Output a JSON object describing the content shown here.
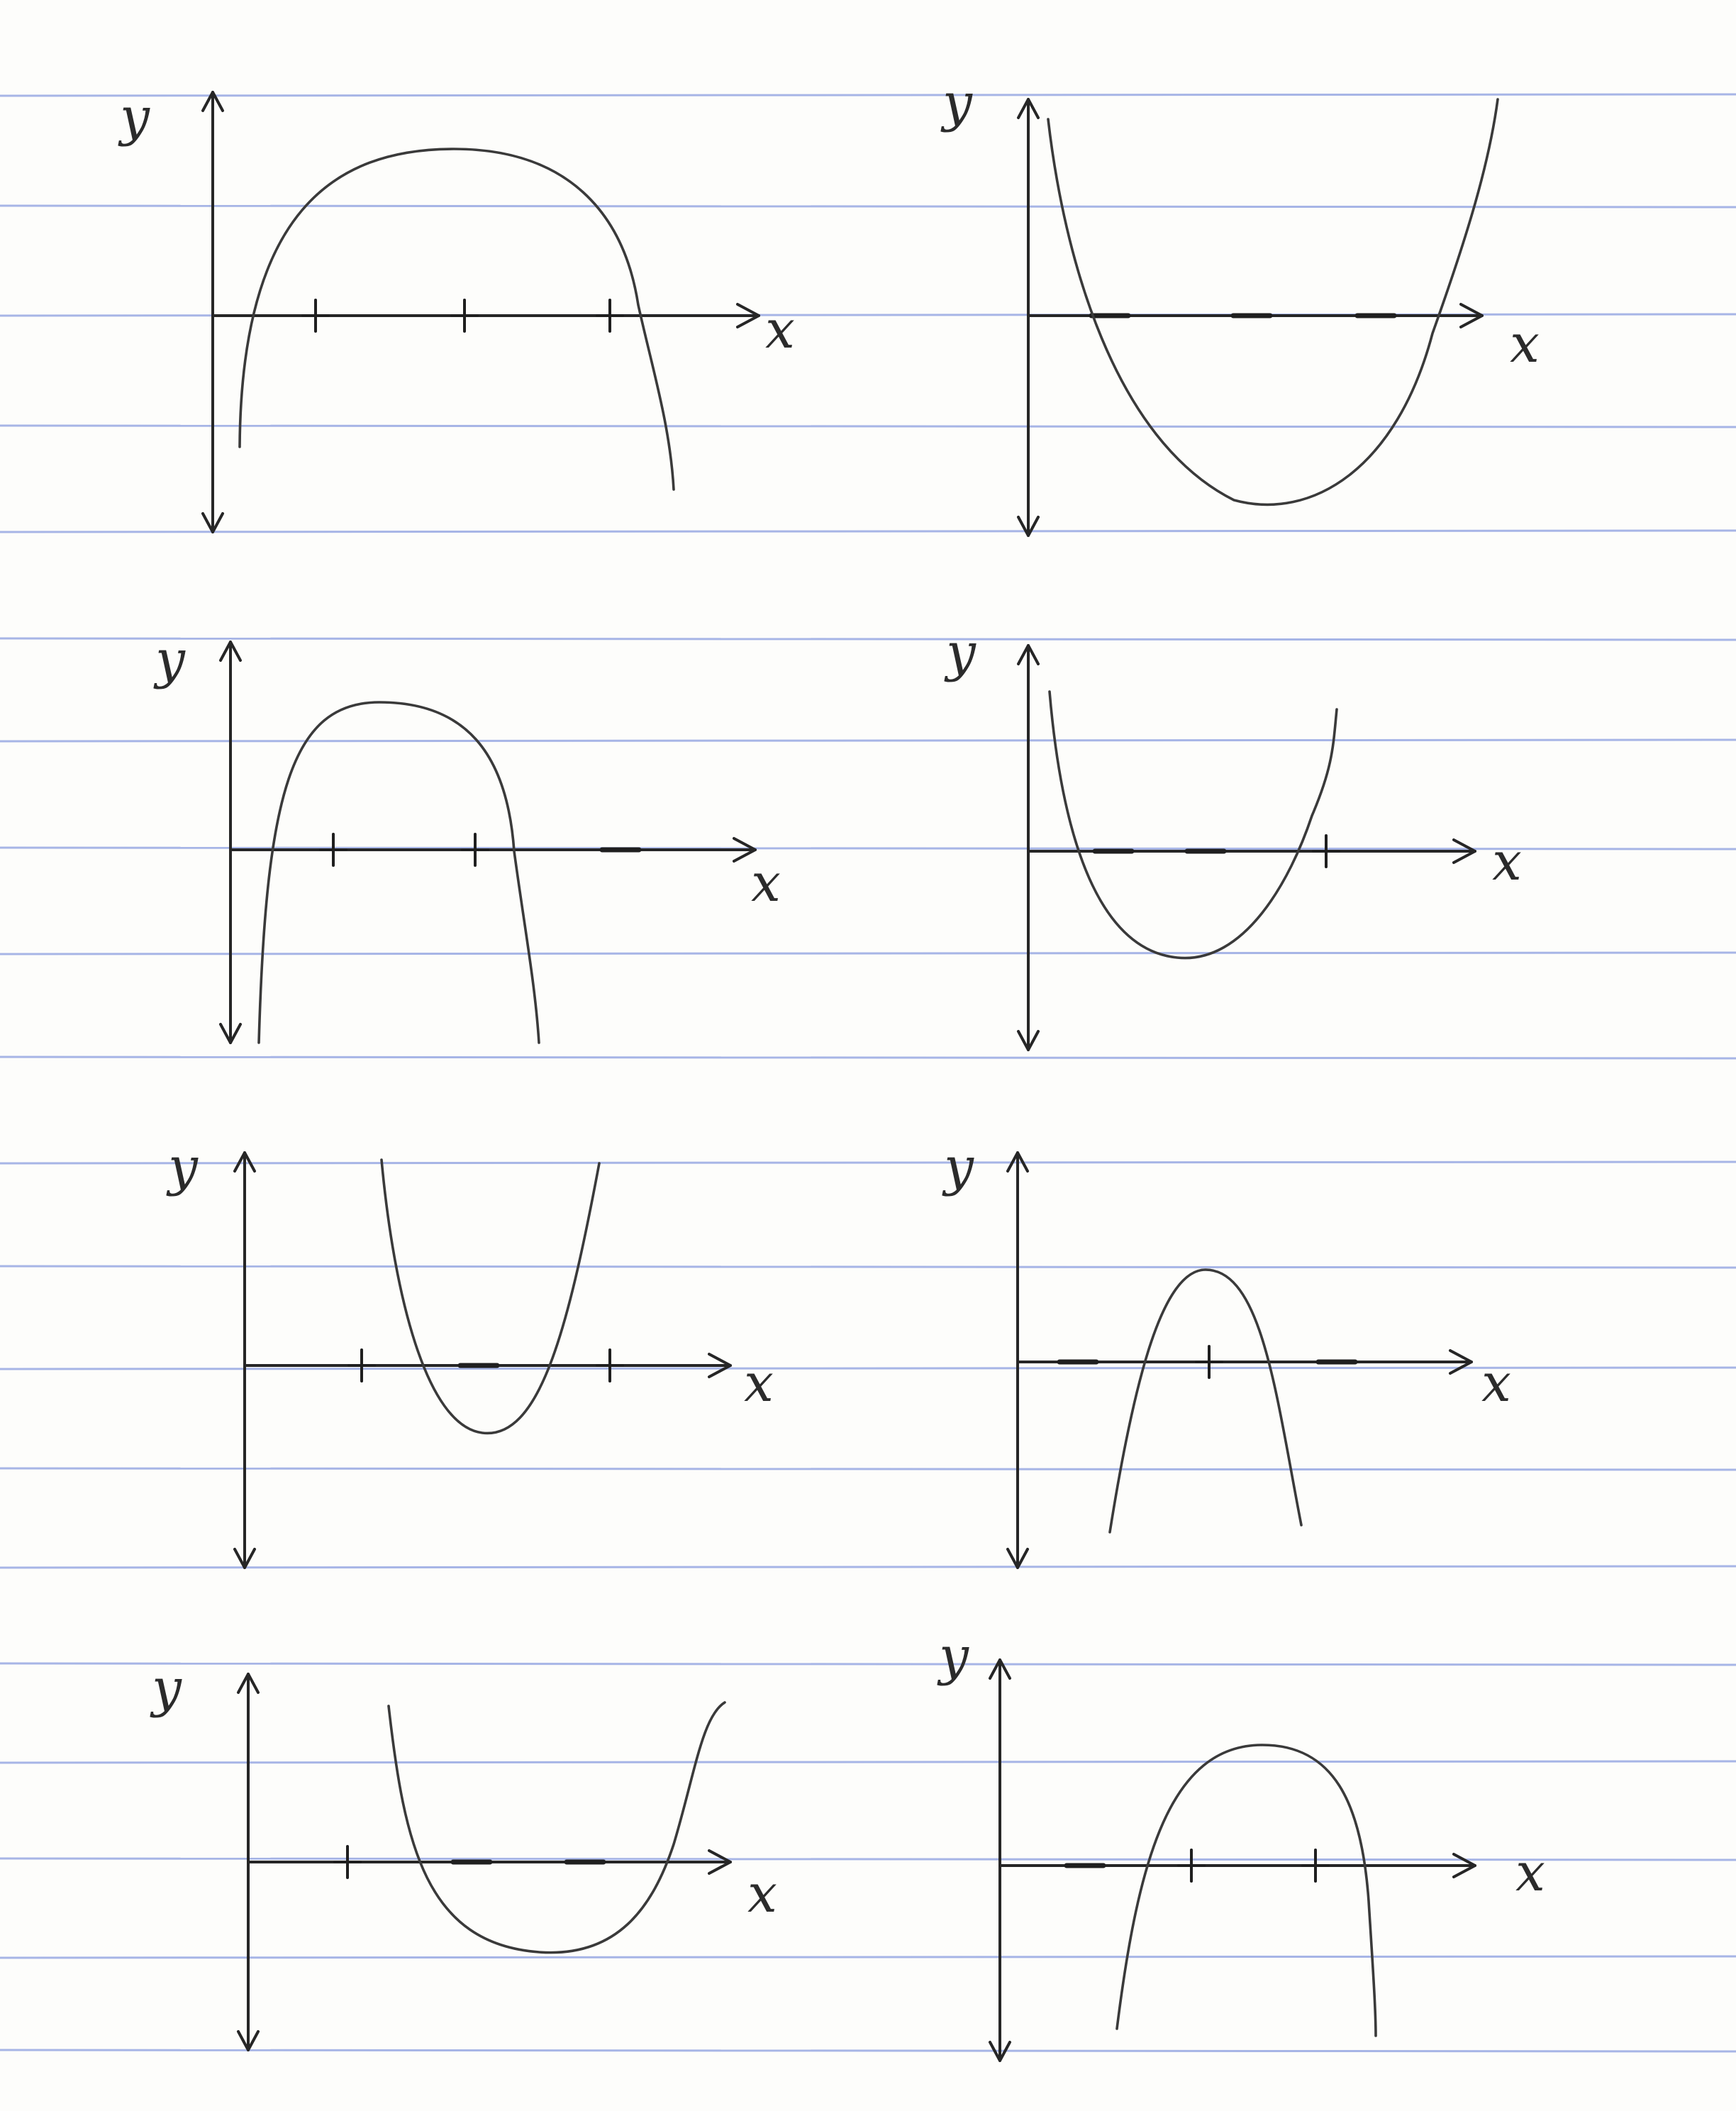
{
  "page": {
    "paper_color": "#fdfdfb",
    "rule_color": "#a7b5e6",
    "ink_color": "#2b2b2b"
  },
  "sketches": [
    {
      "id": "sketch-1",
      "axis_labels": {
        "y": "y",
        "x": "x"
      },
      "signs": [
        "+",
        "+",
        "+"
      ],
      "shape": "opens-down"
    },
    {
      "id": "sketch-2",
      "axis_labels": {
        "y": "y",
        "x": "x"
      },
      "signs": [
        "−",
        "−",
        "−"
      ],
      "shape": "opens-up"
    },
    {
      "id": "sketch-3",
      "axis_labels": {
        "y": "y",
        "x": "x"
      },
      "signs": [
        "+",
        "+",
        "−"
      ],
      "shape": "opens-down"
    },
    {
      "id": "sketch-4",
      "axis_labels": {
        "y": "y",
        "x": "x"
      },
      "signs": [
        "−",
        "−",
        "+"
      ],
      "shape": "opens-up"
    },
    {
      "id": "sketch-5",
      "axis_labels": {
        "y": "y",
        "x": "x"
      },
      "signs": [
        "+",
        "−",
        "+"
      ],
      "shape": "opens-up"
    },
    {
      "id": "sketch-6",
      "axis_labels": {
        "y": "y",
        "x": "x"
      },
      "signs": [
        "−",
        "+",
        "−"
      ],
      "shape": "opens-down"
    },
    {
      "id": "sketch-7",
      "axis_labels": {
        "y": "y",
        "x": "x"
      },
      "signs": [
        "+",
        "−",
        "−"
      ],
      "shape": "opens-up"
    },
    {
      "id": "sketch-8",
      "axis_labels": {
        "y": "y",
        "x": "x"
      },
      "signs": [
        "−",
        "+",
        "+"
      ],
      "shape": "opens-down"
    }
  ]
}
